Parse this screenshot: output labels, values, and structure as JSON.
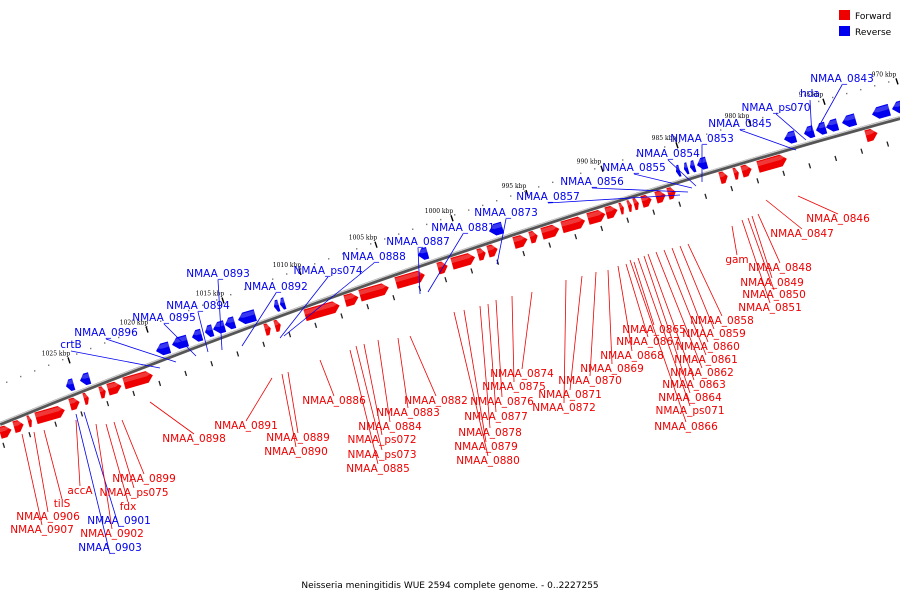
{
  "legend": [
    {
      "label": "Forward",
      "color": "#ee0000"
    },
    {
      "label": "Reverse",
      "color": "#0000ee"
    }
  ],
  "caption": "Neisseria meningitidis WUE 2594 complete genome. - 0..2227255",
  "ticks": [
    "1025 kbp",
    "1020 kbp",
    "1015 kbp",
    "1010 kbp",
    "1005 kbp",
    "1000 kbp",
    "995 kbp",
    "990 kbp",
    "985 kbp",
    "980 kbp",
    "975 kbp",
    "970 kbp"
  ],
  "genes": {
    "reverse": [
      "NMAA_0843",
      "hda",
      "NMAA_ps070",
      "NMAA_0845",
      "NMAA_0853",
      "NMAA_0854",
      "NMAA_0855",
      "NMAA_0856",
      "NMAA_0857",
      "NMAA_0873",
      "NMAA_0881",
      "NMAA_0887",
      "NMAA_0888",
      "NMAA_ps074",
      "NMAA_0892",
      "NMAA_0893",
      "NMAA_0894",
      "NMAA_0895",
      "NMAA_0896",
      "crtB",
      "NMAA_0901",
      "NMAA_0903"
    ],
    "forward": [
      "NMAA_0846",
      "NMAA_0847",
      "gam",
      "NMAA_0848",
      "NMAA_0849",
      "NMAA_0850",
      "NMAA_0851",
      "NMAA_0858",
      "NMAA_0859",
      "NMAA_0860",
      "NMAA_0861",
      "NMAA_0862",
      "NMAA_0863",
      "NMAA_0864",
      "NMAA_ps071",
      "NMAA_0866",
      "NMAA_0865",
      "NMAA_0867",
      "NMAA_0868",
      "NMAA_0869",
      "NMAA_0870",
      "NMAA_0871",
      "NMAA_0872",
      "NMAA_0874",
      "NMAA_0875",
      "NMAA_0876",
      "NMAA_0877",
      "NMAA_0878",
      "NMAA_0879",
      "NMAA_0880",
      "NMAA_0882",
      "NMAA_0883",
      "NMAA_0884",
      "NMAA_ps072",
      "NMAA_ps073",
      "NMAA_0885",
      "NMAA_0886",
      "NMAA_0889",
      "NMAA_0890",
      "NMAA_0891",
      "NMAA_0898",
      "NMAA_0899",
      "NMAA_ps075",
      "fdx",
      "accA",
      "tilS",
      "NMAA_0906",
      "NMAA_0907",
      "NMAA_0902"
    ]
  }
}
